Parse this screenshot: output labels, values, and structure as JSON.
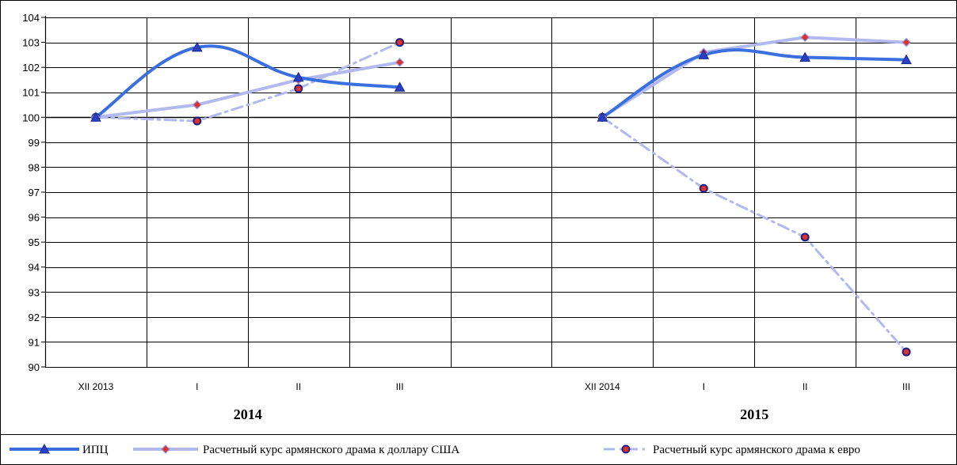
{
  "chart_data": {
    "type": "line",
    "ylim": [
      90,
      104
    ],
    "yticks": [
      "90",
      "91",
      "92",
      "93",
      "94",
      "95",
      "96",
      "97",
      "98",
      "99",
      "100",
      "101",
      "102",
      "103",
      "104"
    ],
    "categories": [
      "XII 2013",
      "I",
      "II",
      "III",
      "",
      "XII 2014",
      "I",
      "II",
      "III"
    ],
    "year_labels": [
      {
        "text": "2014",
        "cat_span": [
          0,
          4
        ]
      },
      {
        "text": "2015",
        "cat_span": [
          5,
          9
        ]
      }
    ],
    "grid": true,
    "legend_position": "bottom",
    "series": [
      {
        "name": "ИПЦ",
        "color": "#3b6fe0",
        "line_color": "#3b6fe0",
        "marker": "triangle",
        "dash": "solid",
        "smooth": true,
        "segments": [
          [
            [
              0,
              100.0
            ],
            [
              1,
              102.8
            ],
            [
              2,
              101.6
            ],
            [
              3,
              101.2
            ]
          ],
          [
            [
              5,
              100.0
            ],
            [
              6,
              102.5
            ],
            [
              7,
              102.4
            ],
            [
              8,
              102.3
            ]
          ]
        ]
      },
      {
        "name": "Расчетный курс армянского драма к доллару США",
        "color": "#b3b8ef",
        "line_color": "#b3b8ef",
        "marker": "diamond",
        "dash": "solid",
        "smooth": false,
        "segments": [
          [
            [
              0,
              100.0
            ],
            [
              1,
              100.5
            ],
            [
              2,
              101.5
            ],
            [
              3,
              102.2
            ]
          ],
          [
            [
              5,
              100.0
            ],
            [
              6,
              102.6
            ],
            [
              7,
              103.2
            ],
            [
              8,
              103.0
            ]
          ]
        ]
      },
      {
        "name": "Расчетный курс армянского драма к евро",
        "color": "#b3b8ef",
        "line_color": "#b3b8ef",
        "marker": "circle",
        "dash": "dashdot",
        "smooth": false,
        "segments": [
          [
            [
              0,
              100.0
            ],
            [
              1,
              99.85
            ],
            [
              2,
              101.15
            ],
            [
              3,
              103.0
            ]
          ],
          [
            [
              5,
              100.0
            ],
            [
              6,
              97.15
            ],
            [
              7,
              95.2
            ],
            [
              8,
              90.6
            ]
          ]
        ]
      }
    ]
  }
}
